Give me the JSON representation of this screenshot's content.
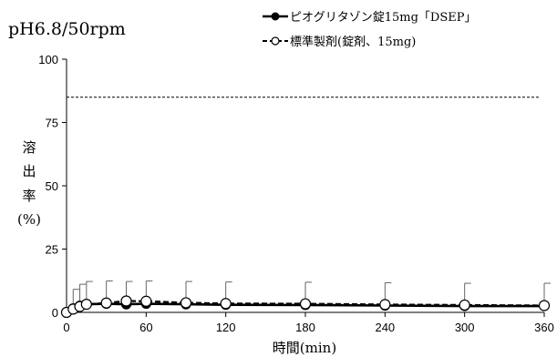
{
  "chart_data": {
    "type": "line",
    "title": "pH6.8/50rpm",
    "xlabel": "時間(min)",
    "ylabel_lines": [
      "溶",
      "出",
      "率",
      "(%)"
    ],
    "xlim": [
      0,
      360
    ],
    "ylim": [
      0,
      100
    ],
    "xticks": [
      0,
      60,
      120,
      180,
      240,
      300,
      360
    ],
    "yticks": [
      0,
      25,
      50,
      75,
      100
    ],
    "reference_line": {
      "y": 85,
      "style": "dashed"
    },
    "legend_position": "top-right",
    "series": [
      {
        "name": "ピオグリタゾン錠15mg「DSEP」",
        "marker": "filled-circle",
        "line": "solid",
        "x": [
          0,
          5,
          10,
          15,
          30,
          45,
          60,
          90,
          120,
          180,
          240,
          300,
          360
        ],
        "y": [
          0,
          1.6,
          2.6,
          3.2,
          3.4,
          3.2,
          3.4,
          3.2,
          3.0,
          2.9,
          2.7,
          2.5,
          2.5
        ],
        "error": [
          0,
          7.5,
          8.5,
          9.0,
          9.0,
          9.0,
          9.0,
          9.0,
          9.0,
          9.0,
          9.0,
          9.0,
          9.0
        ]
      },
      {
        "name": "標準製剤(錠剤、15mg)",
        "marker": "open-circle",
        "line": "dashed",
        "x": [
          0,
          5,
          10,
          15,
          30,
          45,
          60,
          90,
          120,
          180,
          240,
          300,
          360
        ],
        "y": [
          0,
          1.3,
          2.3,
          3.2,
          3.7,
          4.5,
          4.4,
          3.8,
          3.5,
          3.4,
          3.1,
          2.9,
          2.7
        ],
        "error": [
          0,
          0,
          0,
          0,
          0,
          0,
          0,
          0,
          0,
          0,
          0,
          0,
          0
        ]
      }
    ]
  }
}
